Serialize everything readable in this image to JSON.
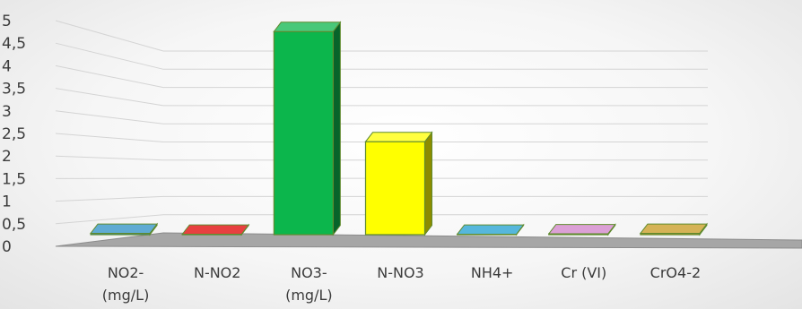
{
  "chart_data": {
    "type": "bar",
    "style": "3d-column",
    "categories": [
      [
        "NO2-",
        "(mg/L)"
      ],
      [
        "N-NO2"
      ],
      [
        "NO3-",
        "(mg/L)"
      ],
      [
        "N-NO3"
      ],
      [
        "NH4+"
      ],
      [
        "Cr (VI)"
      ],
      [
        "CrO4-2"
      ]
    ],
    "values": [
      0.03,
      0.01,
      4.5,
      2.06,
      0.01,
      0.02,
      0.03
    ],
    "bar_colors": [
      "#2a8fc4",
      "#e00000",
      "#0cb64c",
      "#ffff00",
      "#1e9fd0",
      "#d080c8",
      "#c79a1e"
    ],
    "y_ticks": [
      "0",
      "0,5",
      "1",
      "1,5",
      "2",
      "2,5",
      "3",
      "3,5",
      "4",
      "4,5",
      "5"
    ],
    "ylim": [
      0,
      5
    ],
    "title": "",
    "xlabel": "",
    "ylabel": "",
    "grid": true,
    "legend": "none"
  }
}
